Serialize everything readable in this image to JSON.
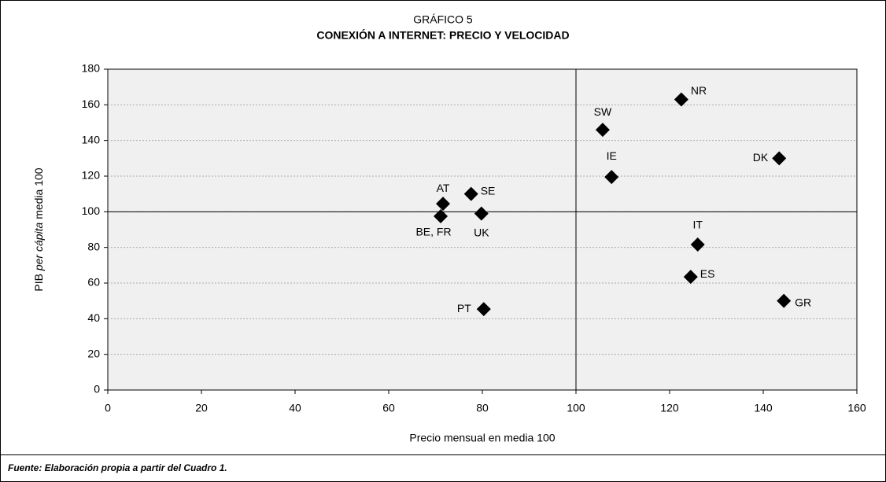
{
  "chart_data": {
    "type": "scatter",
    "title": "GRÁFICO 5",
    "subtitle": "CONEXIÓN A INTERNET: PRECIO Y VELOCIDAD",
    "xlabel": "Precio mensual en media 100",
    "ylabel_parts": [
      "PIB ",
      "per cápita",
      " media 100"
    ],
    "source": "Fuente: Elaboración propia a partir del Cuadro 1.",
    "labels": [
      "NR",
      "SW",
      "DK",
      "IE",
      "AT",
      "SE",
      "UK",
      "BE, FR",
      "IT",
      "ES",
      "GR",
      "PT"
    ],
    "x": [
      122.5,
      105.7,
      143.4,
      107.6,
      71.6,
      77.6,
      79.8,
      71.1,
      126,
      124.5,
      144.4,
      80.3
    ],
    "y": [
      163,
      146,
      130,
      119.5,
      104.5,
      110,
      99,
      97.5,
      81.6,
      63.5,
      50,
      45.4
    ],
    "color": "#000000",
    "reference_lines": {
      "x": 100,
      "y": 100
    },
    "xlim": [
      0,
      160
    ],
    "xticks": [
      0,
      20,
      40,
      60,
      80,
      100,
      120,
      140,
      160
    ],
    "ylim": [
      0,
      180
    ],
    "yticks": [
      0,
      20,
      40,
      60,
      80,
      100,
      120,
      140,
      160,
      180
    ],
    "grid": true
  }
}
